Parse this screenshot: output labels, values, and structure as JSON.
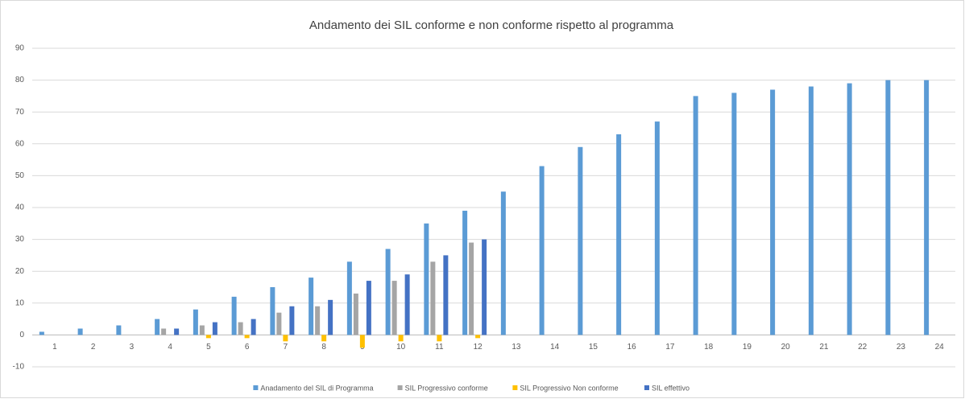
{
  "chart_data": {
    "type": "bar",
    "title": "Andamento dei SIL conforme e non conforme rispetto al programma",
    "categories": [
      "1",
      "2",
      "3",
      "4",
      "5",
      "6",
      "7",
      "8",
      "9",
      "10",
      "11",
      "12",
      "13",
      "14",
      "15",
      "16",
      "17",
      "18",
      "19",
      "20",
      "21",
      "22",
      "23",
      "24"
    ],
    "series": [
      {
        "name": "Anadamento del SIL di Programma",
        "color": "#5b9bd5",
        "values": [
          1,
          2,
          3,
          5,
          8,
          12,
          15,
          18,
          23,
          27,
          35,
          39,
          45,
          53,
          59,
          63,
          67,
          75,
          76,
          77,
          78,
          79,
          80,
          80
        ]
      },
      {
        "name": "SIL Progressivo conforme",
        "color": "#a5a5a5",
        "values": [
          null,
          null,
          null,
          2,
          3,
          4,
          7,
          9,
          13,
          17,
          23,
          29,
          null,
          null,
          null,
          null,
          null,
          null,
          null,
          null,
          null,
          null,
          null,
          null
        ]
      },
      {
        "name": "SIL Progressivo Non conforme",
        "color": "#ffc000",
        "values": [
          null,
          null,
          null,
          null,
          -1,
          -1,
          -2,
          -2,
          -4,
          -2,
          -2,
          -1,
          null,
          null,
          null,
          null,
          null,
          null,
          null,
          null,
          null,
          null,
          null,
          null
        ]
      },
      {
        "name": "SIL effettivo",
        "color": "#4472c4",
        "values": [
          null,
          null,
          null,
          2,
          4,
          5,
          9,
          11,
          17,
          19,
          25,
          30,
          null,
          null,
          null,
          null,
          null,
          null,
          null,
          null,
          null,
          null,
          null,
          null
        ]
      }
    ],
    "ylim": [
      -10,
      90
    ],
    "yticks": [
      -10,
      0,
      10,
      20,
      30,
      40,
      50,
      60,
      70,
      80,
      90
    ],
    "grid": true,
    "legend": "bottom"
  }
}
